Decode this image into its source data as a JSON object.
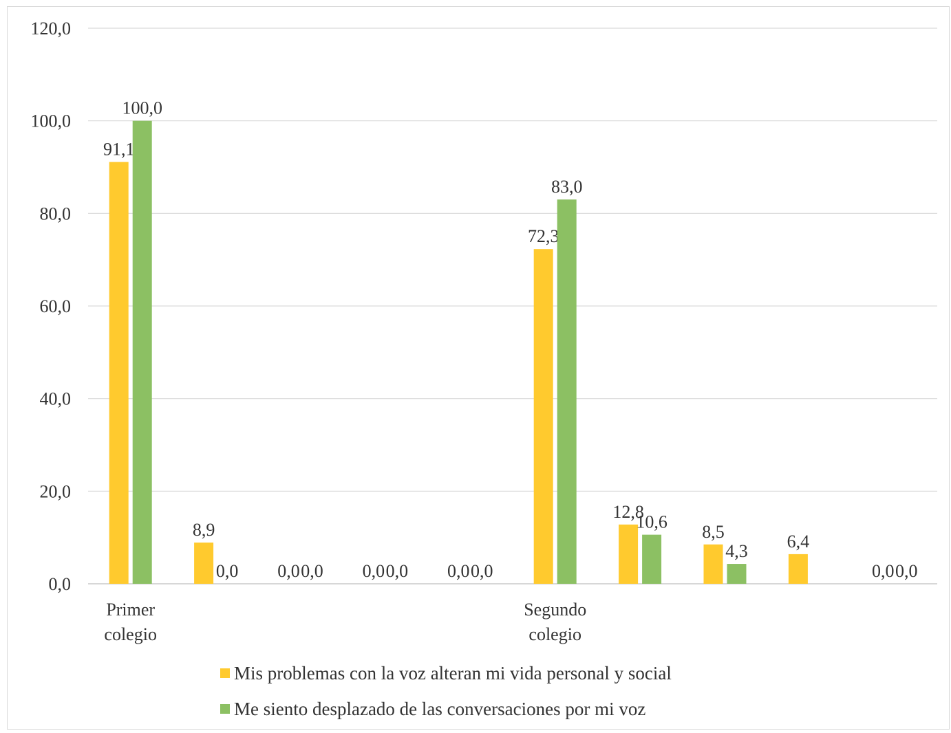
{
  "chart_data": {
    "type": "bar",
    "categories": [
      "Primer colegio",
      "",
      "",
      "",
      "",
      "Segundo colegio",
      "",
      "",
      "",
      ""
    ],
    "category_lines": [
      [
        "Primer",
        "colegio"
      ],
      [],
      [],
      [],
      [],
      [
        "Segundo",
        "colegio"
      ],
      [],
      [],
      [],
      []
    ],
    "series": [
      {
        "name": "Mis problemas con la voz alteran mi vida personal y social",
        "color": "#FFCA2E",
        "values": [
          91.1,
          8.9,
          0.0,
          0.0,
          0.0,
          72.3,
          12.8,
          8.5,
          6.4,
          0.0
        ],
        "labels": [
          "91,1",
          "8,9",
          "0,0",
          "0,0",
          "0,0",
          "72,3",
          "12,8",
          "8,5",
          "6,4",
          "0,0"
        ]
      },
      {
        "name": "Me siento desplazado de las conversaciones por mi voz",
        "color": "#8CC063",
        "values": [
          100.0,
          0.0,
          0.0,
          0.0,
          0.0,
          83.0,
          10.6,
          4.3,
          null,
          0.0
        ],
        "labels": [
          "100,0",
          "0,0",
          "0,0",
          "0,0",
          "0,0",
          "83,0",
          "10,6",
          "4,3",
          null,
          "0,0"
        ]
      }
    ],
    "ylim": [
      0,
      120
    ],
    "yticks": [
      0,
      20,
      40,
      60,
      80,
      100,
      120
    ],
    "ytick_labels": [
      "0,0",
      "20,0",
      "40,0",
      "60,0",
      "80,0",
      "100,0",
      "120,0"
    ],
    "grid": true,
    "legend_position": "bottom",
    "title": "",
    "xlabel": "",
    "ylabel": ""
  }
}
